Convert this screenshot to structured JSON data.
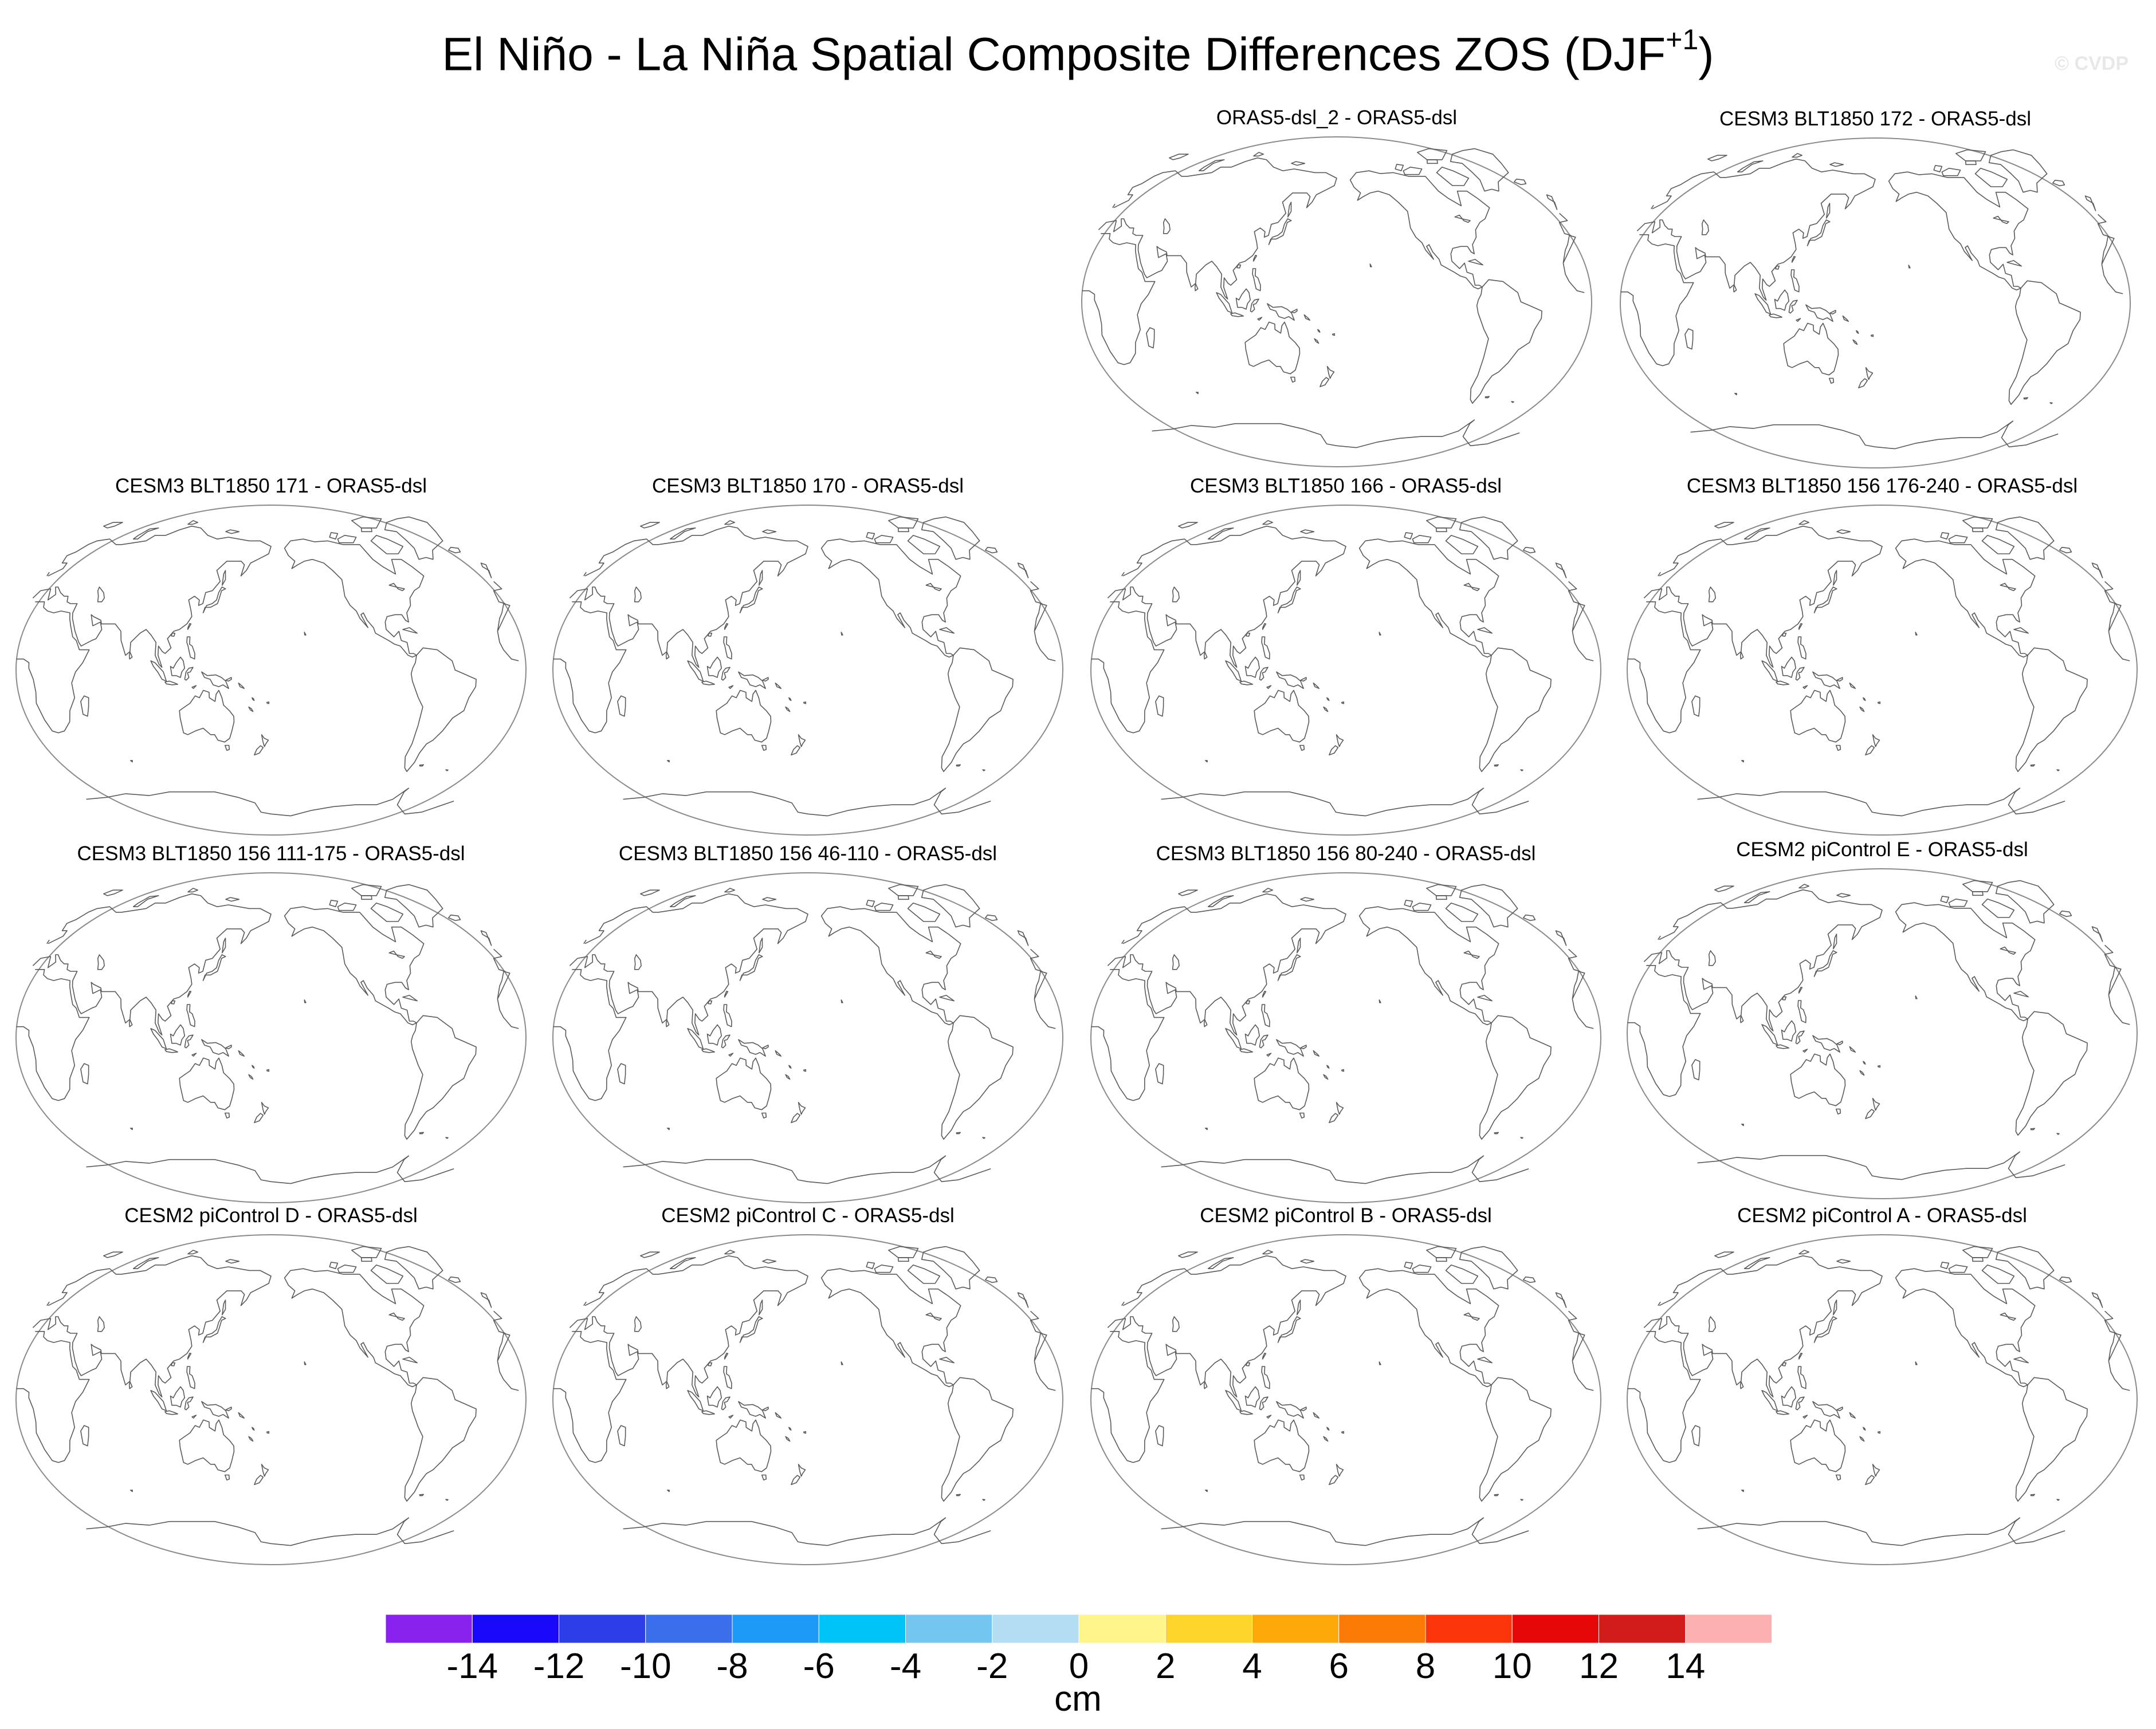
{
  "title": {
    "main": "El Niño - La Niña Spatial Composite Differences ZOS (DJF",
    "superscript": "+1",
    "close": ")"
  },
  "watermark": "© CVDP",
  "panels": [
    {
      "title": "ORAS5-dsl_2 - ORAS5-dsl"
    },
    {
      "title": "CESM3 BLT1850 172 - ORAS5-dsl"
    },
    {
      "title": "CESM3 BLT1850 171 - ORAS5-dsl"
    },
    {
      "title": "CESM3 BLT1850 170 - ORAS5-dsl"
    },
    {
      "title": "CESM3 BLT1850 166 - ORAS5-dsl"
    },
    {
      "title": "CESM3 BLT1850 156 176-240 - ORAS5-dsl"
    },
    {
      "title": "CESM3 BLT1850 156 111-175 - ORAS5-dsl"
    },
    {
      "title": "CESM3 BLT1850 156 46-110 - ORAS5-dsl"
    },
    {
      "title": "CESM3 BLT1850 156 80-240 - ORAS5-dsl"
    },
    {
      "title": "CESM2 piControl E - ORAS5-dsl"
    },
    {
      "title": "CESM2 piControl D - ORAS5-dsl"
    },
    {
      "title": "CESM2 piControl C - ORAS5-dsl"
    },
    {
      "title": "CESM2 piControl B - ORAS5-dsl"
    },
    {
      "title": "CESM2 piControl A - ORAS5-dsl"
    }
  ],
  "colorbar": {
    "unit": "cm",
    "labels": [
      "-14",
      "-12",
      "-10",
      "-8",
      "-6",
      "-4",
      "-2",
      "0",
      "2",
      "4",
      "6",
      "8",
      "10",
      "12",
      "14"
    ],
    "colors": [
      "#8a22ee",
      "#1a08f8",
      "#2c3ee6",
      "#3a6eea",
      "#1d99f8",
      "#00c3f8",
      "#73c6f0",
      "#b3ddf3",
      "#fff48a",
      "#fdd42a",
      "#fca808",
      "#fc7a06",
      "#fc360a",
      "#e60808",
      "#d21c1c",
      "#fcb0b0"
    ]
  }
}
